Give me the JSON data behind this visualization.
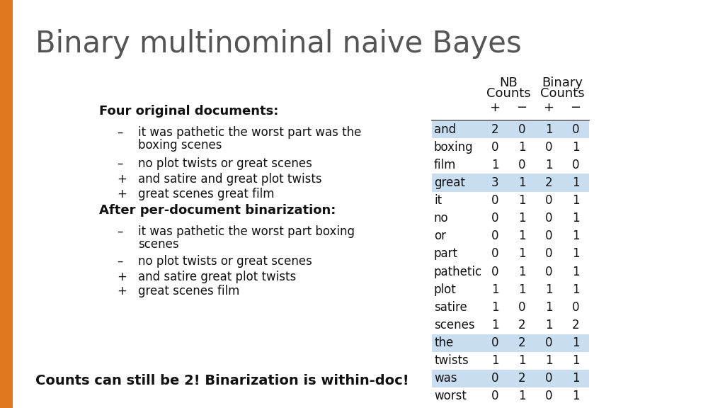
{
  "title": "Binary multinominal naive Bayes",
  "title_fontsize": 30,
  "title_color": "#555555",
  "background_color": "#ffffff",
  "orange_bar_color": "#e07820",
  "left_panel": {
    "bold_heading1": "Four original documents:",
    "item1_sign": "–",
    "item1_line1": "it was pathetic the worst part was the",
    "item1_line2": "boxing scenes",
    "items1_rest": [
      [
        "–",
        "no plot twists or great scenes"
      ],
      [
        "+",
        "and satire and great plot twists"
      ],
      [
        "+",
        "great scenes great film"
      ]
    ],
    "bold_heading2": "After per-document binarization:",
    "item2_sign": "–",
    "item2_line1": "it was pathetic the worst part boxing",
    "item2_line2": "scenes",
    "items2_rest": [
      [
        "–",
        "no plot twists or great scenes"
      ],
      [
        "+",
        "and satire great plot twists"
      ],
      [
        "+",
        "great scenes film"
      ]
    ],
    "footer": "Counts can still be 2! Binarization is within-doc!"
  },
  "table": {
    "rows": [
      [
        "and",
        2,
        0,
        1,
        0
      ],
      [
        "boxing",
        0,
        1,
        0,
        1
      ],
      [
        "film",
        1,
        0,
        1,
        0
      ],
      [
        "great",
        3,
        1,
        2,
        1
      ],
      [
        "it",
        0,
        1,
        0,
        1
      ],
      [
        "no",
        0,
        1,
        0,
        1
      ],
      [
        "or",
        0,
        1,
        0,
        1
      ],
      [
        "part",
        0,
        1,
        0,
        1
      ],
      [
        "pathetic",
        0,
        1,
        0,
        1
      ],
      [
        "plot",
        1,
        1,
        1,
        1
      ],
      [
        "satire",
        1,
        0,
        1,
        0
      ],
      [
        "scenes",
        1,
        2,
        1,
        2
      ],
      [
        "the",
        0,
        2,
        0,
        1
      ],
      [
        "twists",
        1,
        1,
        1,
        1
      ],
      [
        "was",
        0,
        2,
        0,
        1
      ],
      [
        "worst",
        0,
        1,
        0,
        1
      ]
    ],
    "highlight_rows": [
      0,
      3,
      12,
      14
    ],
    "highlight_color": "#c8ddf0",
    "cell_fontsize": 12,
    "header_fontsize": 13
  }
}
